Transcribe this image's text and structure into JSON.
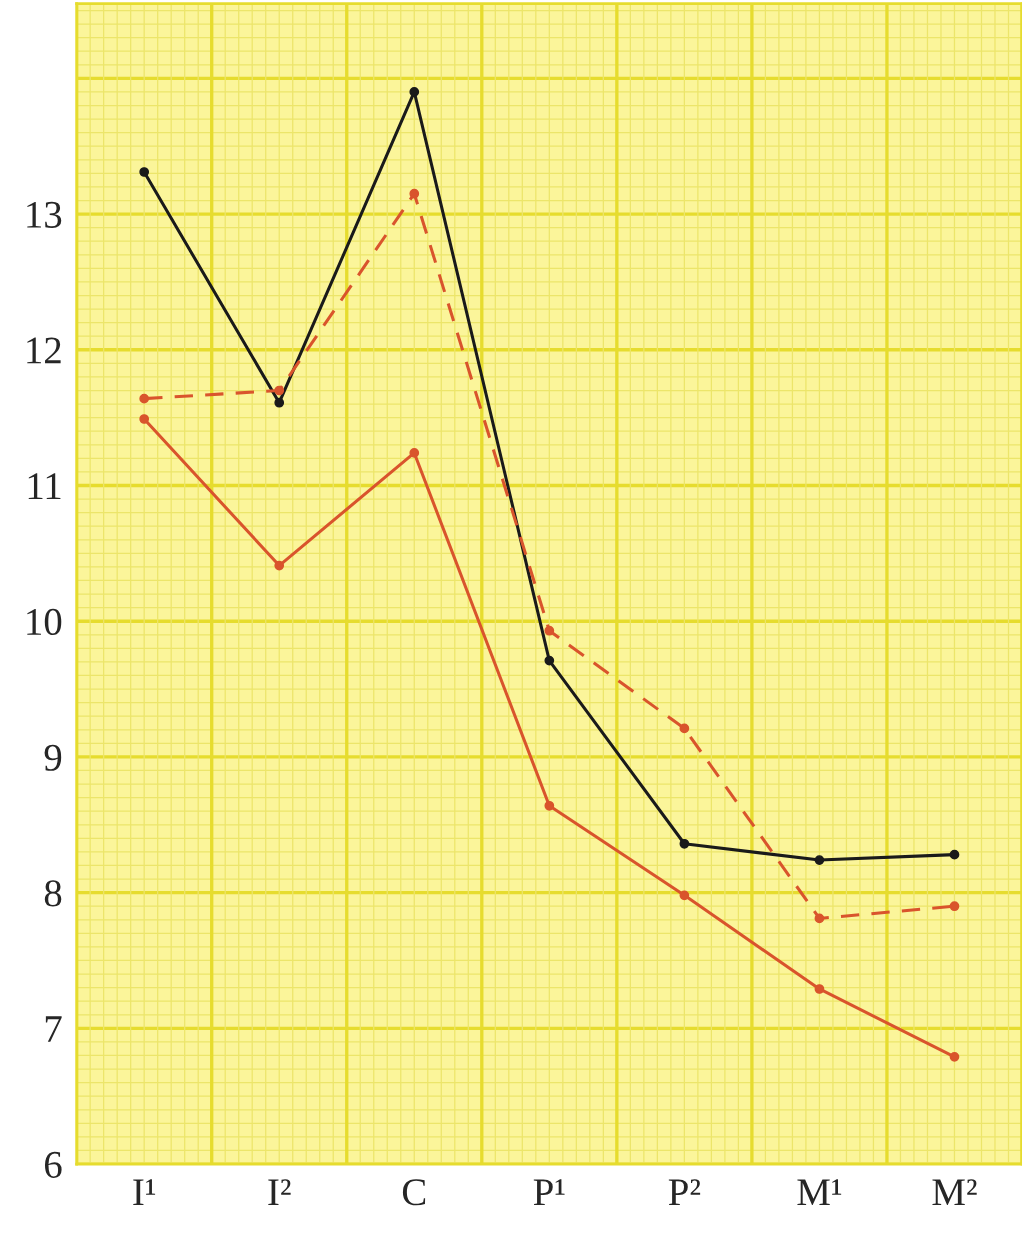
{
  "chart_data": {
    "type": "line",
    "categories": [
      "I¹",
      "I²",
      "C",
      "P¹",
      "P²",
      "M¹",
      "M²"
    ],
    "series": [
      {
        "color": "#1a1a1a",
        "line_style": "solid",
        "values": [
          13.31,
          11.61,
          13.9,
          9.71,
          8.36,
          8.24,
          8.28
        ]
      },
      {
        "color": "#d9542c",
        "line_style": "dashed",
        "values": [
          11.64,
          11.7,
          13.15,
          9.93,
          9.21,
          7.81,
          7.9
        ]
      },
      {
        "color": "#d9542c",
        "line_style": "solid",
        "values": [
          11.49,
          10.41,
          11.24,
          8.64,
          7.98,
          7.29,
          6.79
        ]
      }
    ],
    "ylim": [
      6,
      14.55
    ],
    "yticks": [
      6,
      7,
      8,
      9,
      10,
      11,
      12,
      13
    ],
    "grid": true,
    "marker": "circle",
    "legend": false
  }
}
